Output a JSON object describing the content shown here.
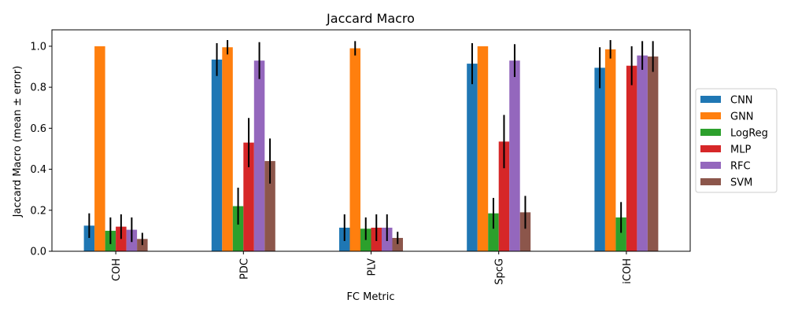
{
  "chart_data": {
    "type": "bar",
    "title": "Jaccard Macro",
    "xlabel": "FC Metric",
    "ylabel": "Jaccard Macro (mean ± error)",
    "categories": [
      "COH",
      "PDC",
      "PLV",
      "SpcG",
      "iCOH"
    ],
    "ylim": [
      0,
      1.08
    ],
    "yticks": [
      "0.0",
      "0.2",
      "0.4",
      "0.6",
      "0.8",
      "1.0"
    ],
    "grid": false,
    "legend_position": "right",
    "series": [
      {
        "name": "CNN",
        "color": "#1f77b4",
        "values": [
          0.125,
          0.935,
          0.115,
          0.915,
          0.895
        ],
        "errors": [
          0.06,
          0.08,
          0.065,
          0.1,
          0.1
        ]
      },
      {
        "name": "GNN",
        "color": "#ff7f0e",
        "values": [
          1.0,
          0.995,
          0.99,
          1.0,
          0.985
        ],
        "errors": [
          0.0,
          0.035,
          0.035,
          0.0,
          0.045
        ]
      },
      {
        "name": "LogReg",
        "color": "#2ca02c",
        "values": [
          0.1,
          0.22,
          0.11,
          0.185,
          0.165
        ],
        "errors": [
          0.065,
          0.09,
          0.055,
          0.075,
          0.075
        ]
      },
      {
        "name": "MLP",
        "color": "#d62728",
        "values": [
          0.12,
          0.53,
          0.115,
          0.535,
          0.905
        ],
        "errors": [
          0.06,
          0.12,
          0.065,
          0.13,
          0.095
        ]
      },
      {
        "name": "RFC",
        "color": "#9467bd",
        "values": [
          0.105,
          0.93,
          0.115,
          0.93,
          0.955
        ],
        "errors": [
          0.06,
          0.09,
          0.065,
          0.08,
          0.07
        ]
      },
      {
        "name": "SVM",
        "color": "#8c564b",
        "values": [
          0.06,
          0.44,
          0.065,
          0.19,
          0.95
        ],
        "errors": [
          0.03,
          0.11,
          0.03,
          0.08,
          0.075
        ]
      }
    ]
  }
}
